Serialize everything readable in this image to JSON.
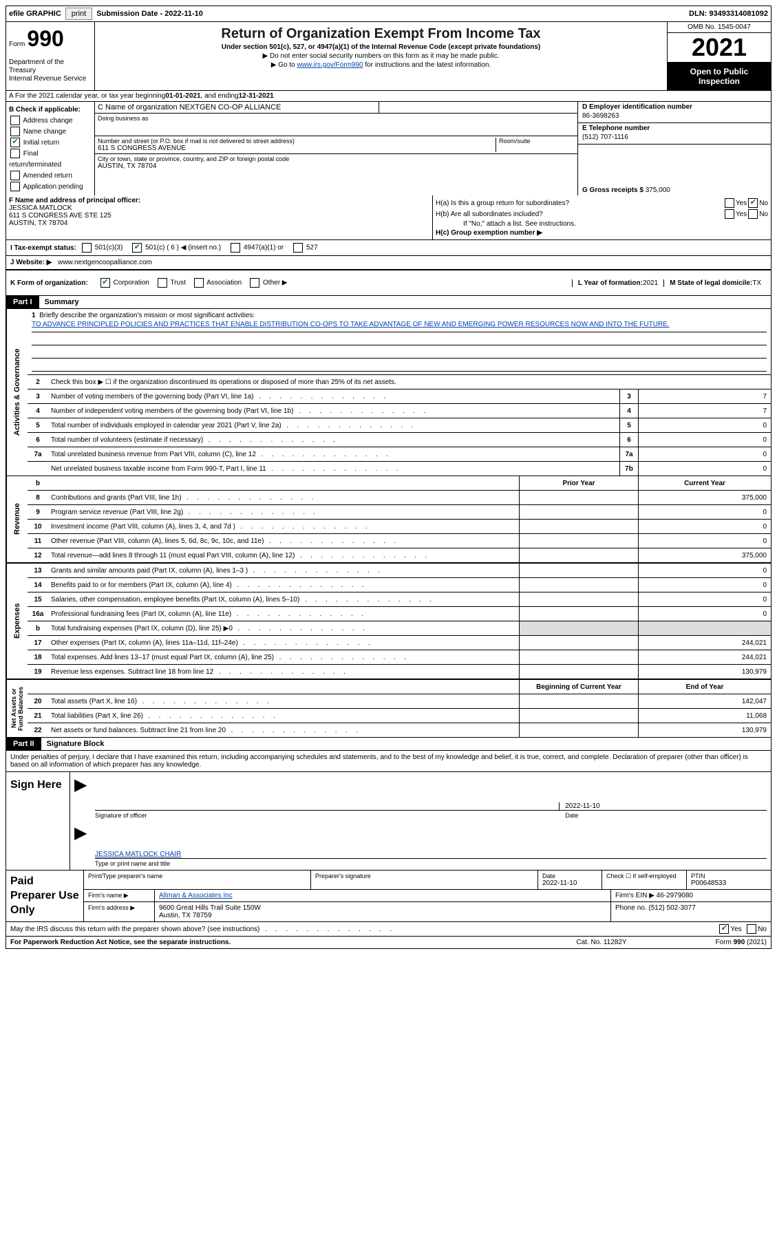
{
  "topbar": {
    "efile": "efile GRAPHIC",
    "print": "print",
    "subdate_label": "Submission Date - ",
    "subdate": "2022-11-10",
    "dln_label": "DLN: ",
    "dln": "93493314081092"
  },
  "header": {
    "form_label": "Form",
    "form_number": "990",
    "dept": "Department of the Treasury\nInternal Revenue Service",
    "title": "Return of Organization Exempt From Income Tax",
    "subtitle": "Under section 501(c), 527, or 4947(a)(1) of the Internal Revenue Code (except private foundations)",
    "note1": "▶ Do not enter social security numbers on this form as it may be made public.",
    "note2_pre": "▶ Go to ",
    "note2_link": "www.irs.gov/Form990",
    "note2_post": " for instructions and the latest information.",
    "omb": "OMB No. 1545-0047",
    "taxyear": "2021",
    "oti": "Open to Public Inspection"
  },
  "sectionA": {
    "text_pre": "A For the 2021 calendar year, or tax year beginning ",
    "begin": "01-01-2021",
    "mid": " , and ending ",
    "end": "12-31-2021"
  },
  "B": {
    "label": "B Check if applicable:",
    "items": [
      {
        "label": "Address change",
        "checked": false
      },
      {
        "label": "Name change",
        "checked": false
      },
      {
        "label": "Initial return",
        "checked": true
      },
      {
        "label": "Final return/terminated",
        "checked": false
      },
      {
        "label": "Amended return",
        "checked": false
      },
      {
        "label": "Application pending",
        "checked": false
      }
    ]
  },
  "C": {
    "name_lbl": "C Name of organization",
    "name": "NEXTGEN CO-OP ALLIANCE",
    "dba_lbl": "Doing business as",
    "dba": "",
    "street_lbl": "Number and street (or P.O. box if mail is not delivered to street address)",
    "street": "611 S CONGRESS AVENUE",
    "room_lbl": "Room/suite",
    "room": "",
    "city_lbl": "City or town, state or province, country, and ZIP or foreign postal code",
    "city": "AUSTIN, TX  78704"
  },
  "D": {
    "lbl": "D Employer identification number",
    "val": "86-3698263"
  },
  "E": {
    "lbl": "E Telephone number",
    "val": "(512) 707-1116"
  },
  "G": {
    "lbl": "G Gross receipts $",
    "val": "375,000"
  },
  "F": {
    "lbl": "F Name and address of principal officer:",
    "name": "JESSICA MATLOCK",
    "addr1": "611 S CONGRESS AVE STE 125",
    "addr2": "AUSTIN, TX  78704"
  },
  "H": {
    "a_q": "H(a)  Is this a group return for subordinates?",
    "a_yes": "Yes",
    "a_no": "No",
    "b_q": "H(b)  Are all subordinates included?",
    "b_note": "If \"No,\" attach a list. See instructions.",
    "c_q": "H(c)  Group exemption number ▶"
  },
  "I": {
    "lbl": "I   Tax-exempt status:",
    "opts": [
      {
        "label": "501(c)(3)",
        "checked": false
      },
      {
        "label": "501(c) ( 6 ) ◀ (insert no.)",
        "checked": true
      },
      {
        "label": "4947(a)(1) or",
        "checked": false
      },
      {
        "label": "527",
        "checked": false
      }
    ]
  },
  "J": {
    "lbl": "J   Website: ▶",
    "val": " www.nextgencoopalliance.com"
  },
  "K": {
    "lbl": "K Form of organization:",
    "opts": [
      {
        "label": "Corporation",
        "checked": true
      },
      {
        "label": "Trust",
        "checked": false
      },
      {
        "label": "Association",
        "checked": false
      },
      {
        "label": "Other ▶",
        "checked": false
      }
    ],
    "L_lbl": "L Year of formation:",
    "L_val": "2021",
    "M_lbl": "M State of legal domicile:",
    "M_val": "TX"
  },
  "partI": {
    "badge": "Part I",
    "title": "Summary"
  },
  "mission": {
    "q": "Briefly describe the organization's mission or most significant activities:",
    "text": "TO ADVANCE PRINCIPLED POLICIES AND PRACTICES THAT ENABLE DISTRIBUTION CO-OPS TO TAKE ADVANTAGE OF NEW AND EMERGING POWER RESOURCES NOW AND INTO THE FUTURE."
  },
  "line2": "Check this box ▶ ☐ if the organization discontinued its operations or disposed of more than 25% of its net assets.",
  "vlabels": {
    "ag": "Activities & Governance",
    "rev": "Revenue",
    "exp": "Expenses",
    "na": "Net Assets or\nFund Balances"
  },
  "gov_lines": [
    {
      "n": "3",
      "t": "Number of voting members of the governing body (Part VI, line 1a)",
      "box": "3",
      "v": "7"
    },
    {
      "n": "4",
      "t": "Number of independent voting members of the governing body (Part VI, line 1b)",
      "box": "4",
      "v": "7"
    },
    {
      "n": "5",
      "t": "Total number of individuals employed in calendar year 2021 (Part V, line 2a)",
      "box": "5",
      "v": "0"
    },
    {
      "n": "6",
      "t": "Total number of volunteers (estimate if necessary)",
      "box": "6",
      "v": "0"
    },
    {
      "n": "7a",
      "t": "Total unrelated business revenue from Part VIII, column (C), line 12",
      "box": "7a",
      "v": "0"
    },
    {
      "n": "",
      "t": "Net unrelated business taxable income from Form 990-T, Part I, line 11",
      "box": "7b",
      "v": "0"
    }
  ],
  "col_headers": {
    "prior": "Prior Year",
    "current": "Current Year"
  },
  "rev_lines": [
    {
      "n": "8",
      "t": "Contributions and grants (Part VIII, line 1h)",
      "p": "",
      "c": "375,000"
    },
    {
      "n": "9",
      "t": "Program service revenue (Part VIII, line 2g)",
      "p": "",
      "c": "0"
    },
    {
      "n": "10",
      "t": "Investment income (Part VIII, column (A), lines 3, 4, and 7d )",
      "p": "",
      "c": "0"
    },
    {
      "n": "11",
      "t": "Other revenue (Part VIII, column (A), lines 5, 6d, 8c, 9c, 10c, and 11e)",
      "p": "",
      "c": "0"
    },
    {
      "n": "12",
      "t": "Total revenue—add lines 8 through 11 (must equal Part VIII, column (A), line 12)",
      "p": "",
      "c": "375,000"
    }
  ],
  "exp_lines": [
    {
      "n": "13",
      "t": "Grants and similar amounts paid (Part IX, column (A), lines 1–3 )",
      "p": "",
      "c": "0"
    },
    {
      "n": "14",
      "t": "Benefits paid to or for members (Part IX, column (A), line 4)",
      "p": "",
      "c": "0"
    },
    {
      "n": "15",
      "t": "Salaries, other compensation, employee benefits (Part IX, column (A), lines 5–10)",
      "p": "",
      "c": "0"
    },
    {
      "n": "16a",
      "t": "Professional fundraising fees (Part IX, column (A), line 11e)",
      "p": "",
      "c": "0"
    },
    {
      "n": "b",
      "t": "Total fundraising expenses (Part IX, column (D), line 25) ▶0",
      "shaded": true,
      "p": "",
      "c": ""
    },
    {
      "n": "17",
      "t": "Other expenses (Part IX, column (A), lines 11a–11d, 11f–24e)",
      "p": "",
      "c": "244,021"
    },
    {
      "n": "18",
      "t": "Total expenses. Add lines 13–17 (must equal Part IX, column (A), line 25)",
      "p": "",
      "c": "244,021"
    },
    {
      "n": "19",
      "t": "Revenue less expenses. Subtract line 18 from line 12",
      "p": "",
      "c": "130,979"
    }
  ],
  "na_headers": {
    "begin": "Beginning of Current Year",
    "end": "End of Year"
  },
  "na_lines": [
    {
      "n": "20",
      "t": "Total assets (Part X, line 16)",
      "p": "",
      "c": "142,047"
    },
    {
      "n": "21",
      "t": "Total liabilities (Part X, line 26)",
      "p": "",
      "c": "11,068"
    },
    {
      "n": "22",
      "t": "Net assets or fund balances. Subtract line 21 from line 20",
      "p": "",
      "c": "130,979"
    }
  ],
  "partII": {
    "badge": "Part II",
    "title": "Signature Block"
  },
  "sig_intro": "Under penalties of perjury, I declare that I have examined this return, including accompanying schedules and statements, and to the best of my knowledge and belief, it is true, correct, and complete. Declaration of preparer (other than officer) is based on all information of which preparer has any knowledge.",
  "sign": {
    "here": "Sign Here",
    "sig_lbl": "Signature of officer",
    "date": "2022-11-10",
    "date_lbl": "Date",
    "name": "JESSICA MATLOCK CHAIR",
    "name_lbl": "Type or print name and title"
  },
  "preparer": {
    "lbl": "Paid Preparer Use Only",
    "print_lbl": "Print/Type preparer's name",
    "sig_lbl": "Preparer's signature",
    "date_lbl": "Date",
    "date": "2022-11-10",
    "check_lbl": "Check ☐ if self-employed",
    "ptin_lbl": "PTIN",
    "ptin": "P00648533",
    "firm_name_lbl": "Firm's name    ▶",
    "firm_name": "Allman & Associates Inc",
    "firm_ein_lbl": "Firm's EIN ▶",
    "firm_ein": "46-2979080",
    "firm_addr_lbl": "Firm's address ▶",
    "firm_addr": "9600 Great Hills Trail Suite 150W\nAustin, TX  78759",
    "phone_lbl": "Phone no.",
    "phone": "(512) 502-3077"
  },
  "discuss": {
    "q": "May the IRS discuss this return with the preparer shown above? (see instructions)",
    "yes": "Yes",
    "no": "No"
  },
  "footer": {
    "notice": "For Paperwork Reduction Act Notice, see the separate instructions.",
    "cat": "Cat. No. 11282Y",
    "form": "Form 990 (2021)"
  }
}
